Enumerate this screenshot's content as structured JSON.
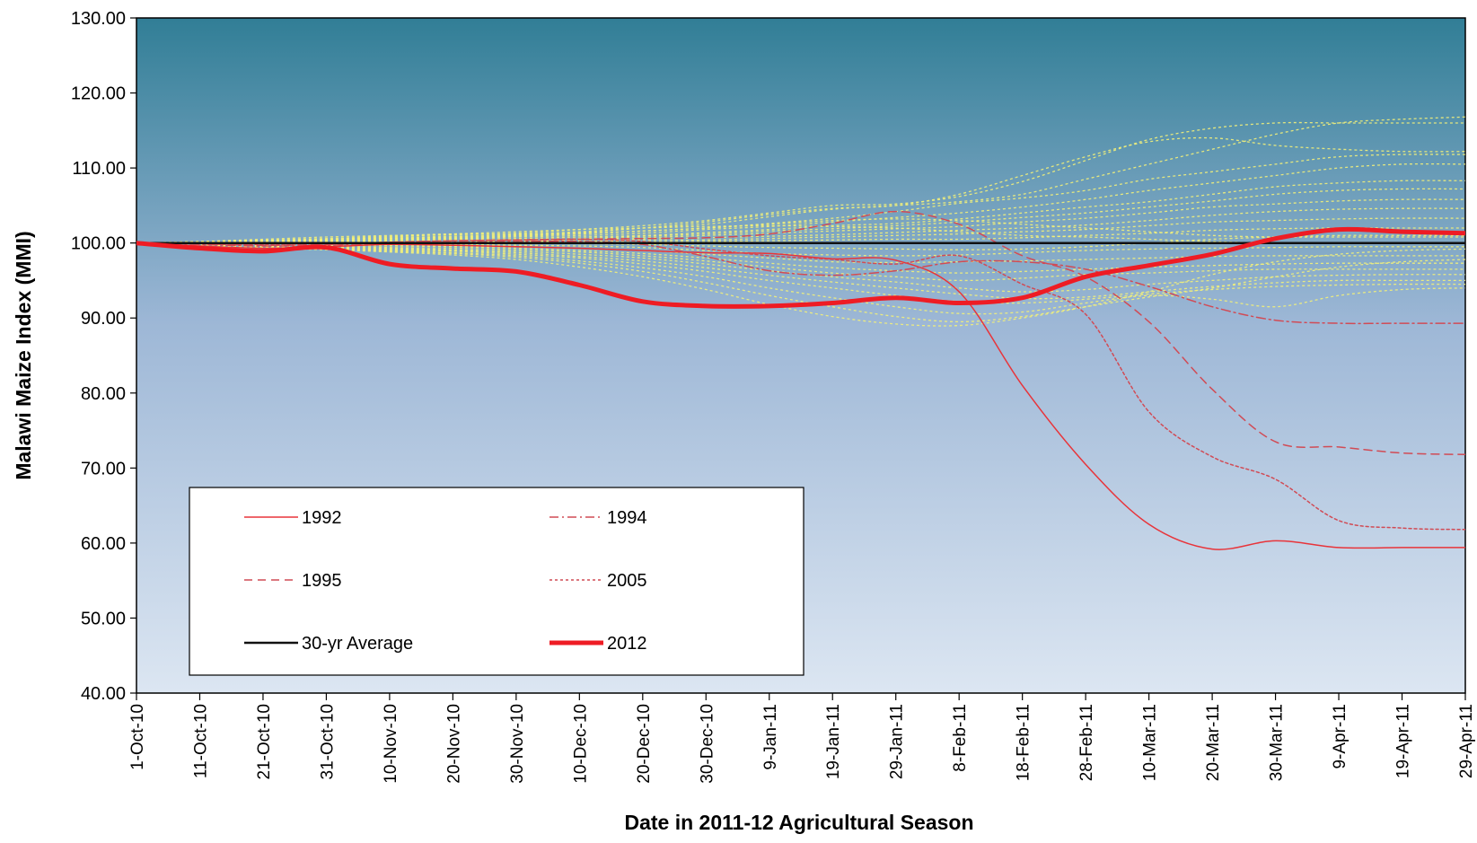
{
  "chart_data": {
    "type": "line",
    "title": "",
    "xlabel": "Date in 2011-12 Agricultural  Season",
    "ylabel": "Malawi Maize Index (MMI)",
    "ylim": [
      40,
      130
    ],
    "yticks": [
      "40.00",
      "50.00",
      "60.00",
      "70.00",
      "80.00",
      "90.00",
      "100.00",
      "110.00",
      "120.00",
      "130.00"
    ],
    "x_tick_labels": [
      "1-Oct-10",
      "11-Oct-10",
      "21-Oct-10",
      "31-Oct-10",
      "10-Nov-10",
      "20-Nov-10",
      "30-Nov-10",
      "10-Dec-10",
      "20-Dec-10",
      "30-Dec-10",
      "9-Jan-11",
      "19-Jan-11",
      "29-Jan-11",
      "8-Feb-11",
      "18-Feb-11",
      "28-Feb-11",
      "10-Mar-11",
      "20-Mar-11",
      "30-Mar-11",
      "9-Apr-11",
      "19-Apr-11",
      "29-Apr-11"
    ],
    "x": [
      "1-Oct-10",
      "11-Oct-10",
      "21-Oct-10",
      "31-Oct-10",
      "10-Nov-10",
      "20-Nov-10",
      "30-Nov-10",
      "10-Dec-10",
      "20-Dec-10",
      "30-Dec-10",
      "9-Jan-11",
      "19-Jan-11",
      "29-Jan-11",
      "8-Feb-11",
      "18-Feb-11",
      "28-Feb-11",
      "10-Mar-11",
      "20-Mar-11",
      "30-Mar-11",
      "9-Apr-11",
      "19-Apr-11",
      "29-Apr-11"
    ],
    "grid": false,
    "legend_position": "bottom-left",
    "background": {
      "top_color": "#317e96",
      "mid_color": "#9db7d6",
      "bottom_color": "#dce6f2"
    },
    "series": [
      {
        "name": "1992",
        "style": "solid",
        "color": "#e8343a",
        "width": 1.5,
        "values": [
          100,
          99.6,
          99.3,
          99.5,
          99.8,
          99.7,
          99.5,
          99.3,
          99.0,
          98.7,
          98.6,
          97.9,
          97.7,
          93.5,
          81,
          70.5,
          62.5,
          59.2,
          60.3,
          59.4,
          59.4,
          59.4
        ]
      },
      {
        "name": "1994",
        "style": "dashdot",
        "color": "#d14b55",
        "width": 1.5,
        "values": [
          100,
          99.8,
          99.6,
          99.7,
          100.0,
          100.1,
          100.2,
          100.2,
          99.8,
          98.2,
          96.3,
          95.7,
          96.3,
          97.5,
          97.5,
          96.5,
          94.2,
          91.5,
          89.7,
          89.3,
          89.3,
          89.3
        ]
      },
      {
        "name": "1995",
        "style": "dashed",
        "color": "#d14b55",
        "width": 1.5,
        "values": [
          100,
          99.9,
          99.7,
          99.8,
          100.1,
          100.3,
          100.4,
          100.5,
          100.6,
          100.7,
          101.2,
          102.6,
          104.2,
          102.5,
          98.3,
          95.5,
          89.5,
          80.5,
          73.5,
          72.8,
          72.0,
          71.8
        ]
      },
      {
        "name": "2005",
        "style": "dotted",
        "color": "#d14b55",
        "width": 1.5,
        "values": [
          100,
          99.9,
          99.8,
          99.9,
          100.1,
          100.3,
          100.4,
          100.5,
          100.2,
          99.2,
          98.3,
          97.8,
          97.2,
          98.3,
          94.5,
          90.5,
          77.5,
          71.5,
          68.5,
          63.0,
          62.0,
          61.8
        ]
      },
      {
        "name": "30-yr Average",
        "style": "solid",
        "color": "#111111",
        "width": 2.5,
        "values": [
          100,
          100,
          100,
          100,
          100,
          100,
          100,
          100,
          100,
          100,
          100,
          100,
          100,
          100,
          100,
          100,
          100,
          100,
          100,
          100,
          100,
          100
        ]
      },
      {
        "name": "2012",
        "style": "solid",
        "color": "#ee1c24",
        "width": 5,
        "values": [
          100,
          99.3,
          98.9,
          99.4,
          97.2,
          96.6,
          96.2,
          94.4,
          92.2,
          91.6,
          91.6,
          92.0,
          92.7,
          92.0,
          92.7,
          95.5,
          97.0,
          98.5,
          100.6,
          101.8,
          101.5,
          101.3
        ]
      }
    ],
    "background_years": {
      "style": "dotted",
      "color": "#f2f07a",
      "width": 1.3,
      "values": [
        [
          100,
          100.2,
          100.5,
          100.8,
          101.0,
          101.2,
          101.2,
          101.5,
          102.0,
          102.5,
          103.5,
          104.5,
          105.0,
          105.5,
          106.5,
          108.5,
          110.5,
          112.5,
          114.5,
          116.0,
          116.5,
          116.8
        ],
        [
          100,
          100.2,
          100.4,
          100.6,
          100.9,
          101.1,
          101.3,
          101.8,
          102.3,
          103.0,
          104.0,
          105.0,
          105.2,
          106.2,
          108.2,
          111.0,
          113.8,
          115.3,
          116.0,
          116.0,
          116.0,
          116.0
        ],
        [
          100,
          100.1,
          100.3,
          100.5,
          100.7,
          100.9,
          101.1,
          101.4,
          102.0,
          102.8,
          103.8,
          104.6,
          105.0,
          106.5,
          109.0,
          111.5,
          113.5,
          114.0,
          113.0,
          112.5,
          112.2,
          112.2
        ],
        [
          100,
          100.1,
          100.2,
          100.4,
          100.6,
          100.7,
          100.9,
          101.2,
          101.6,
          102.0,
          102.6,
          103.3,
          104.2,
          105.3,
          106.0,
          107.0,
          108.5,
          109.5,
          110.5,
          111.5,
          111.8,
          111.8
        ],
        [
          100,
          100.1,
          100.2,
          100.3,
          100.5,
          100.6,
          100.8,
          101.0,
          101.3,
          101.8,
          102.2,
          102.8,
          103.4,
          104.0,
          104.8,
          105.8,
          107.0,
          108.0,
          109.0,
          110.0,
          110.5,
          110.5
        ],
        [
          100,
          100.0,
          100.1,
          100.2,
          100.4,
          100.5,
          100.6,
          100.8,
          101.0,
          101.4,
          101.8,
          102.3,
          102.6,
          103.2,
          104.0,
          104.8,
          105.5,
          106.5,
          107.5,
          108.0,
          108.3,
          108.3
        ],
        [
          100,
          100.0,
          100.1,
          100.2,
          100.3,
          100.4,
          100.5,
          100.6,
          100.9,
          101.2,
          101.6,
          101.9,
          102.3,
          102.8,
          103.4,
          104.0,
          104.8,
          105.6,
          106.5,
          107.0,
          107.2,
          107.2
        ],
        [
          100,
          100.0,
          100.0,
          100.1,
          100.2,
          100.3,
          100.4,
          100.5,
          100.7,
          101.0,
          101.3,
          101.6,
          101.9,
          102.2,
          102.8,
          103.3,
          104.0,
          104.8,
          105.2,
          105.6,
          105.8,
          105.8
        ],
        [
          100,
          100.0,
          100.0,
          100.1,
          100.1,
          100.2,
          100.3,
          100.4,
          100.5,
          100.7,
          100.9,
          101.1,
          101.4,
          101.7,
          102.0,
          102.4,
          103.0,
          103.7,
          104.2,
          104.5,
          104.6,
          104.6
        ],
        [
          100,
          99.9,
          99.9,
          100.0,
          100.1,
          100.1,
          100.2,
          100.2,
          100.3,
          100.4,
          100.6,
          100.8,
          101.0,
          101.2,
          101.5,
          101.8,
          102.3,
          102.8,
          103.0,
          103.2,
          103.3,
          103.3
        ],
        [
          100,
          99.9,
          99.9,
          99.9,
          100.0,
          100.0,
          100.1,
          100.1,
          100.1,
          100.2,
          100.3,
          100.4,
          100.5,
          100.5,
          100.7,
          101.0,
          101.3,
          101.7,
          101.9,
          102.0,
          102.0,
          102.0
        ],
        [
          100,
          99.9,
          99.8,
          99.8,
          99.9,
          99.9,
          99.9,
          99.9,
          99.8,
          99.6,
          99.4,
          99.3,
          99.2,
          99.1,
          99.2,
          99.5,
          100.0,
          100.5,
          100.8,
          101.0,
          101.0,
          101.0
        ],
        [
          100,
          99.9,
          99.8,
          99.8,
          99.8,
          99.8,
          99.7,
          99.6,
          99.4,
          99.0,
          98.6,
          98.4,
          98.3,
          98.4,
          98.7,
          99.0,
          99.2,
          99.3,
          99.4,
          99.5,
          99.5,
          99.5
        ],
        [
          100,
          99.8,
          99.7,
          99.7,
          99.7,
          99.6,
          99.5,
          99.3,
          99.0,
          98.5,
          98.0,
          97.5,
          97.4,
          97.5,
          97.6,
          97.8,
          98.0,
          98.2,
          98.3,
          98.3,
          98.3,
          98.3
        ],
        [
          100,
          99.8,
          99.7,
          99.6,
          99.6,
          99.5,
          99.3,
          99.0,
          98.6,
          98.0,
          97.3,
          96.7,
          96.3,
          96.0,
          96.2,
          96.5,
          96.8,
          97.0,
          97.2,
          97.3,
          97.3,
          97.3
        ],
        [
          100,
          99.8,
          99.6,
          99.5,
          99.4,
          99.3,
          99.1,
          98.8,
          98.3,
          97.6,
          96.8,
          96.0,
          95.5,
          95.0,
          95.3,
          95.8,
          96.0,
          96.3,
          96.5,
          96.5,
          96.5,
          96.5
        ],
        [
          100,
          99.8,
          99.6,
          99.4,
          99.3,
          99.1,
          98.9,
          98.5,
          98.0,
          97.2,
          96.3,
          95.5,
          94.8,
          94.0,
          93.5,
          93.8,
          94.5,
          95.0,
          95.5,
          95.7,
          95.8,
          95.8
        ],
        [
          100,
          99.7,
          99.5,
          99.3,
          99.2,
          99.0,
          98.7,
          98.2,
          97.6,
          96.7,
          95.7,
          94.8,
          94.0,
          93.2,
          92.6,
          92.8,
          93.5,
          94.2,
          94.7,
          95.0,
          95.0,
          95.0
        ],
        [
          100,
          99.7,
          99.5,
          99.3,
          99.1,
          98.9,
          98.5,
          98.0,
          97.2,
          96.2,
          95.0,
          94.0,
          93.0,
          92.2,
          92.0,
          92.5,
          93.2,
          93.8,
          94.2,
          94.4,
          94.5,
          94.5
        ],
        [
          100,
          99.7,
          99.4,
          99.2,
          99.0,
          98.7,
          98.3,
          97.6,
          96.7,
          95.5,
          94.0,
          92.7,
          91.5,
          90.6,
          90.8,
          92.0,
          93.0,
          92.5,
          91.5,
          93.0,
          93.8,
          94.0
        ],
        [
          100,
          99.7,
          99.4,
          99.2,
          98.9,
          98.6,
          98.1,
          97.3,
          96.2,
          94.7,
          93.0,
          91.5,
          90.2,
          89.5,
          90.2,
          91.5,
          92.8,
          94.0,
          95.5,
          96.8,
          97.5,
          97.8
        ],
        [
          100,
          99.6,
          99.3,
          99.1,
          98.8,
          98.4,
          97.8,
          96.8,
          95.5,
          93.8,
          91.8,
          90.2,
          89.2,
          89.0,
          90.0,
          91.5,
          93.5,
          95.8,
          97.5,
          98.5,
          99.0,
          99.2
        ],
        [
          100,
          100.1,
          100.3,
          100.5,
          100.8,
          101.2,
          101.5,
          101.8,
          102.0,
          102.2,
          102.3,
          102.2,
          102.0,
          101.5,
          101.0,
          100.8,
          100.5,
          100.2,
          100.0,
          100.0,
          100.0,
          100.0
        ],
        [
          100,
          100.1,
          100.2,
          100.4,
          100.6,
          100.8,
          101.0,
          101.3,
          101.6,
          102.0,
          102.5,
          103.0,
          103.2,
          103.0,
          102.5,
          102.0,
          101.5,
          101.0,
          100.8,
          100.8,
          100.8,
          100.8
        ]
      ]
    }
  }
}
